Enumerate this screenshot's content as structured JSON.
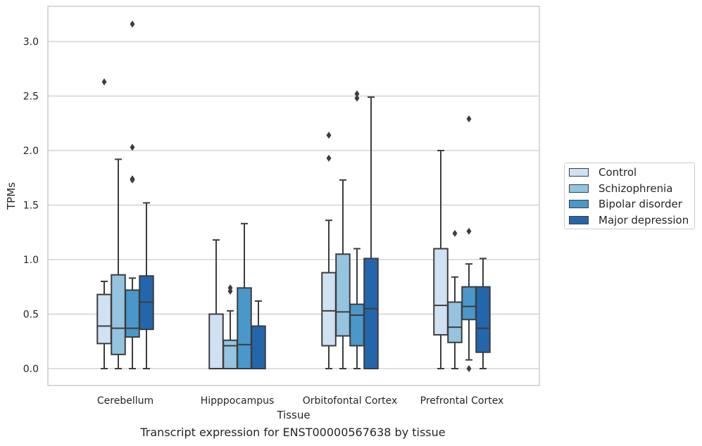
{
  "chart_data": {
    "type": "box",
    "xlabel": "Tissue",
    "ylabel": "TPMs",
    "caption": "Transcript expression for ENST00000567638 by tissue",
    "ylim": [
      -0.15,
      3.5
    ],
    "yticks": [
      "0.0",
      "0.5",
      "1.0",
      "1.5",
      "2.0",
      "2.5",
      "3.0"
    ],
    "categories": [
      "Cerebellum",
      "Hipppocampus",
      "Orbitofontal Cortex",
      "Prefrontal Cortex"
    ],
    "grid": true,
    "legend_position": "right",
    "series": [
      {
        "name": "Control",
        "color": "#d0e1f2",
        "boxes": [
          {
            "whislo": 0.0,
            "q1": 0.23,
            "med": 0.39,
            "q3": 0.68,
            "whishi": 0.8,
            "fliers": [
              2.63
            ]
          },
          {
            "whislo": 0.0,
            "q1": 0.0,
            "med": 0.0,
            "q3": 0.5,
            "whishi": 1.18,
            "fliers": []
          },
          {
            "whislo": 0.0,
            "q1": 0.21,
            "med": 0.53,
            "q3": 0.88,
            "whishi": 1.36,
            "fliers": [
              1.93,
              2.14
            ]
          },
          {
            "whislo": 0.0,
            "q1": 0.31,
            "med": 0.58,
            "q3": 1.1,
            "whishi": 2.0,
            "fliers": []
          }
        ]
      },
      {
        "name": "Schizophrenia",
        "color": "#94c4df",
        "boxes": [
          {
            "whislo": 0.0,
            "q1": 0.13,
            "med": 0.37,
            "q3": 0.86,
            "whishi": 1.92,
            "fliers": []
          },
          {
            "whislo": 0.0,
            "q1": 0.0,
            "med": 0.21,
            "q3": 0.26,
            "whishi": 0.53,
            "fliers": [
              0.71,
              0.74
            ]
          },
          {
            "whislo": 0.0,
            "q1": 0.3,
            "med": 0.52,
            "q3": 1.05,
            "whishi": 1.73,
            "fliers": []
          },
          {
            "whislo": 0.0,
            "q1": 0.24,
            "med": 0.38,
            "q3": 0.61,
            "whishi": 0.84,
            "fliers": [
              1.24
            ]
          }
        ]
      },
      {
        "name": "Bipolar disorder",
        "color": "#4a98c9",
        "boxes": [
          {
            "whislo": 0.0,
            "q1": 0.29,
            "med": 0.37,
            "q3": 0.72,
            "whishi": 0.83,
            "fliers": [
              1.73,
              1.74,
              2.03,
              3.16
            ]
          },
          {
            "whislo": 0.0,
            "q1": 0.0,
            "med": 0.22,
            "q3": 0.74,
            "whishi": 1.33,
            "fliers": []
          },
          {
            "whislo": 0.0,
            "q1": 0.21,
            "med": 0.49,
            "q3": 0.59,
            "whishi": 1.1,
            "fliers": [
              2.48,
              2.52
            ]
          },
          {
            "whislo": 0.08,
            "q1": 0.45,
            "med": 0.57,
            "q3": 0.75,
            "whishi": 0.96,
            "fliers": [
              0.0,
              1.26,
              2.29
            ]
          }
        ]
      },
      {
        "name": "Major depression",
        "color": "#2366ac",
        "boxes": [
          {
            "whislo": 0.0,
            "q1": 0.36,
            "med": 0.61,
            "q3": 0.85,
            "whishi": 1.52,
            "fliers": []
          },
          {
            "whislo": 0.0,
            "q1": 0.0,
            "med": 0.0,
            "q3": 0.39,
            "whishi": 0.62,
            "fliers": []
          },
          {
            "whislo": 0.0,
            "q1": 0.0,
            "med": 0.55,
            "q3": 1.01,
            "whishi": 2.49,
            "fliers": []
          },
          {
            "whislo": 0.0,
            "q1": 0.15,
            "med": 0.37,
            "q3": 0.75,
            "whishi": 1.01,
            "fliers": []
          }
        ]
      }
    ]
  }
}
